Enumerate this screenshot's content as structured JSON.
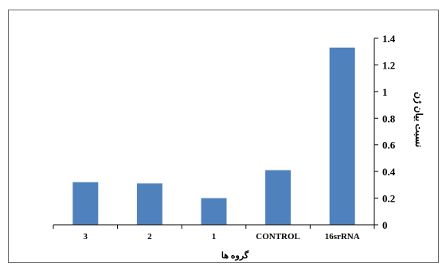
{
  "colors": {
    "bar": "#4f81bd",
    "axis": "#000000",
    "frame": "#6a6a6a"
  },
  "chart_data": {
    "type": "bar",
    "categories": [
      "3",
      "2",
      "1",
      "CONTROL",
      "16srRNA"
    ],
    "values": [
      0.32,
      0.31,
      0.2,
      0.41,
      1.33
    ],
    "ylim": [
      0,
      1.4
    ],
    "yticks": [
      0,
      0.2,
      0.4,
      0.6,
      0.8,
      1,
      1.2,
      1.4
    ],
    "xlabel": "گروه ها",
    "ylabel": "نسبت بیان ژن",
    "y_axis_side": "right",
    "grid": false,
    "legend": "none"
  }
}
